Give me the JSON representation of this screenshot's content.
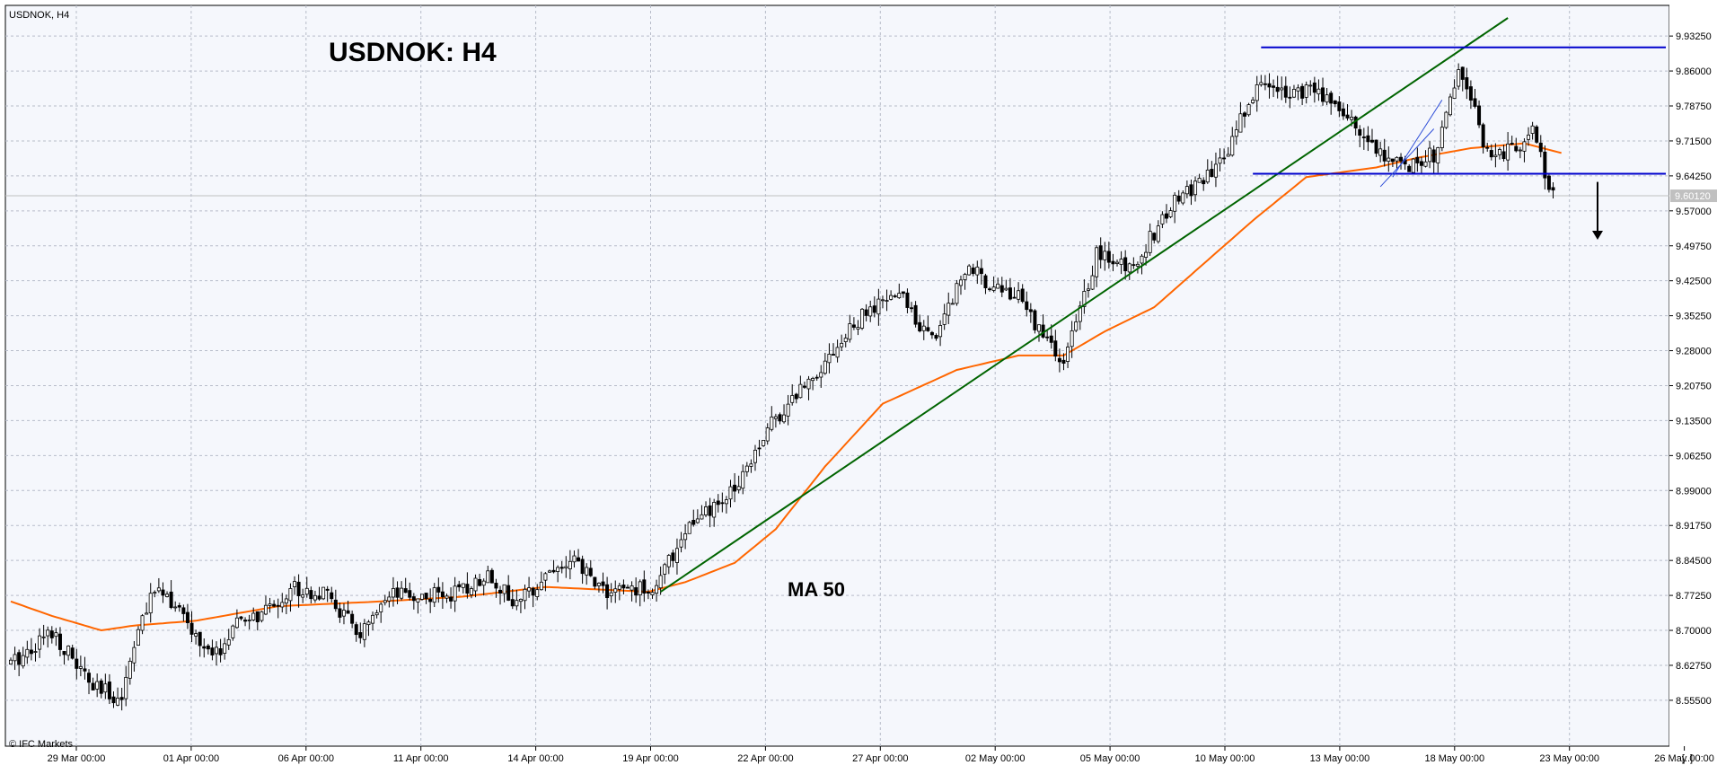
{
  "window": {
    "symbol_label": "USDNOK, H4",
    "watermark": "© IFC Markets"
  },
  "annotations": {
    "big_title": "USDNOK: H4",
    "ma_label": "MA 50"
  },
  "colors": {
    "background": "#ffffff",
    "plot_background": "#f5f7fc",
    "grid": "#b7bcc9",
    "candle": "#000000",
    "ma50": "#ff6600",
    "trendline": "#006400",
    "levels": "#0000cd",
    "channel": "#2f4fd8"
  },
  "chart_data": {
    "type": "candlestick",
    "title": "USDNOK: H4",
    "timeframe": "H4",
    "ylim": [
      8.512,
      9.97
    ],
    "y_ticks": [
      "9.93250",
      "9.86000",
      "9.78750",
      "9.71500",
      "9.64250",
      "9.57000",
      "9.49750",
      "9.42500",
      "9.35250",
      "9.28000",
      "9.20750",
      "9.13500",
      "9.06250",
      "8.99000",
      "8.91750",
      "8.84500",
      "8.77250",
      "8.70000",
      "8.62750",
      "8.55500"
    ],
    "x_ticks": [
      "29 Mar 00:00",
      "01 Apr 00:00",
      "06 Apr 00:00",
      "11 Apr 00:00",
      "14 Apr 00:00",
      "19 Apr 00:00",
      "22 Apr 00:00",
      "27 Apr 00:00",
      "02 May 00:00",
      "05 May 00:00",
      "10 May 00:00",
      "13 May 00:00",
      "18 May 00:00",
      "23 May 00:00",
      "26 May 00:00"
    ],
    "x_axis_suffix": "[..]",
    "current_price": "9.60120",
    "close_path": [
      [
        0,
        8.63
      ],
      [
        10,
        8.7
      ],
      [
        20,
        8.58
      ],
      [
        27,
        8.56
      ],
      [
        30,
        8.68
      ],
      [
        36,
        8.8
      ],
      [
        43,
        8.71
      ],
      [
        49,
        8.64
      ],
      [
        56,
        8.72
      ],
      [
        61,
        8.73
      ],
      [
        69,
        8.79
      ],
      [
        77,
        8.77
      ],
      [
        85,
        8.69
      ],
      [
        93,
        8.77
      ],
      [
        101,
        8.77
      ],
      [
        110,
        8.78
      ],
      [
        116,
        8.82
      ],
      [
        123,
        8.75
      ],
      [
        130,
        8.82
      ],
      [
        137,
        8.84
      ],
      [
        145,
        8.78
      ],
      [
        157,
        8.79
      ],
      [
        164,
        8.91
      ],
      [
        174,
        8.97
      ],
      [
        184,
        9.12
      ],
      [
        198,
        9.26
      ],
      [
        207,
        9.35
      ],
      [
        216,
        9.4
      ],
      [
        224,
        9.3
      ],
      [
        232,
        9.45
      ],
      [
        245,
        9.39
      ],
      [
        256,
        9.25
      ],
      [
        264,
        9.48
      ],
      [
        272,
        9.45
      ],
      [
        284,
        9.6
      ],
      [
        293,
        9.65
      ],
      [
        303,
        9.83
      ],
      [
        320,
        9.81
      ],
      [
        331,
        9.71
      ],
      [
        338,
        9.66
      ],
      [
        347,
        9.69
      ],
      [
        352,
        9.87
      ],
      [
        360,
        9.67
      ],
      [
        370,
        9.73
      ],
      [
        375,
        9.6
      ]
    ],
    "ma50_path": [
      [
        0,
        8.76
      ],
      [
        10,
        8.73
      ],
      [
        22,
        8.7
      ],
      [
        30,
        8.71
      ],
      [
        45,
        8.72
      ],
      [
        65,
        8.75
      ],
      [
        90,
        8.76
      ],
      [
        110,
        8.77
      ],
      [
        130,
        8.79
      ],
      [
        155,
        8.78
      ],
      [
        164,
        8.8
      ],
      [
        176,
        8.84
      ],
      [
        186,
        8.91
      ],
      [
        198,
        9.04
      ],
      [
        212,
        9.17
      ],
      [
        230,
        9.24
      ],
      [
        245,
        9.27
      ],
      [
        256,
        9.27
      ],
      [
        266,
        9.32
      ],
      [
        278,
        9.37
      ],
      [
        290,
        9.46
      ],
      [
        302,
        9.55
      ],
      [
        315,
        9.64
      ],
      [
        332,
        9.66
      ],
      [
        342,
        9.68
      ],
      [
        355,
        9.7
      ],
      [
        368,
        9.71
      ],
      [
        377,
        9.69
      ]
    ],
    "trendline": [
      [
        158,
        8.78
      ],
      [
        364,
        9.97
      ]
    ],
    "horizontal_levels": [
      9.909,
      9.647
    ],
    "channel_lines": [
      [
        [
          336,
          9.64
        ],
        [
          348,
          9.8
        ]
      ],
      [
        [
          333,
          9.62
        ],
        [
          346,
          9.74
        ]
      ]
    ],
    "bearish_arrow": {
      "from_value": 9.63,
      "to_value": 9.51
    }
  }
}
